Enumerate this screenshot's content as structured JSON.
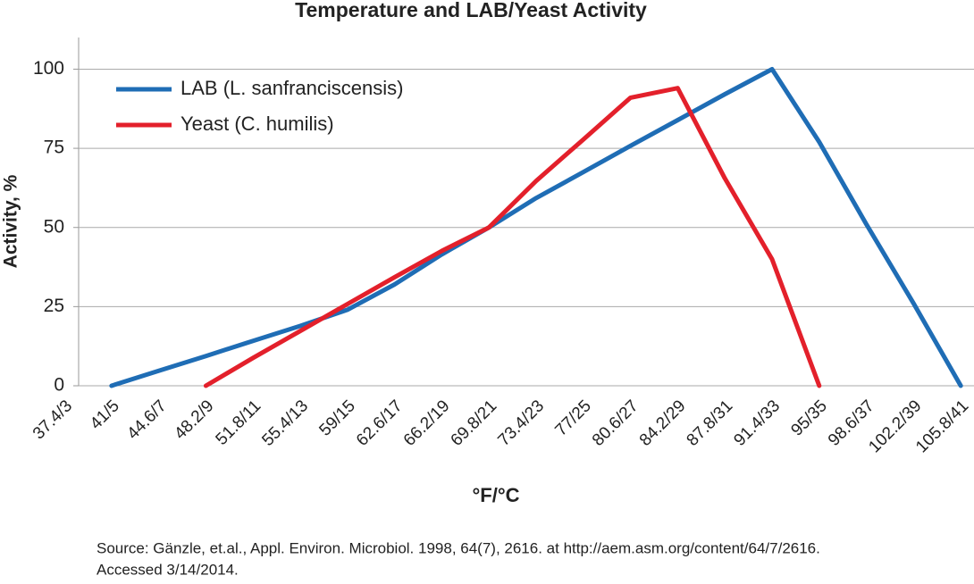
{
  "chart_data": {
    "type": "line",
    "title": "Temperature and LAB/Yeast Activity",
    "x_label": "°F/°C",
    "y_label": "Activity, %",
    "categories": [
      "37.4/3",
      "41/5",
      "44.6/7",
      "48.2/9",
      "51.8/11",
      "55.4/13",
      "59/15",
      "62.6/17",
      "66.2/19",
      "69.8/21",
      "73.4/23",
      "77/25",
      "80.6/27",
      "84.2/29",
      "87.8/31",
      "91.4/33",
      "95/35",
      "98.6/37",
      "102.2/39",
      "105.8/41"
    ],
    "series": [
      {
        "name": "LAB (L. sanfranciscensis)",
        "color": "#1f6db5",
        "values": [
          null,
          0,
          4.7,
          9.4,
          14.2,
          18.9,
          24,
          32,
          41.5,
          50,
          59.3,
          67.5,
          75.8,
          83.9,
          92.1,
          100,
          77,
          51,
          26,
          0
        ]
      },
      {
        "name": "Yeast (C. humilis)",
        "color": "#e3202b",
        "values": [
          null,
          null,
          null,
          0,
          8.8,
          17.3,
          25.8,
          34.3,
          42.6,
          50,
          64.7,
          77.8,
          91,
          94,
          65.5,
          40,
          0,
          null,
          null,
          null
        ]
      }
    ],
    "ylim": [
      0,
      110
    ],
    "yticks": [
      0,
      25,
      50,
      75,
      100
    ],
    "grid": true,
    "legend": "top-left",
    "source": [
      "Source: Gänzle, et.al., Appl. Environ. Microbiol. 1998, 64(7), 2616. at http://aem.asm.org/content/64/7/2616.",
      "Accessed 3/14/2014."
    ]
  }
}
